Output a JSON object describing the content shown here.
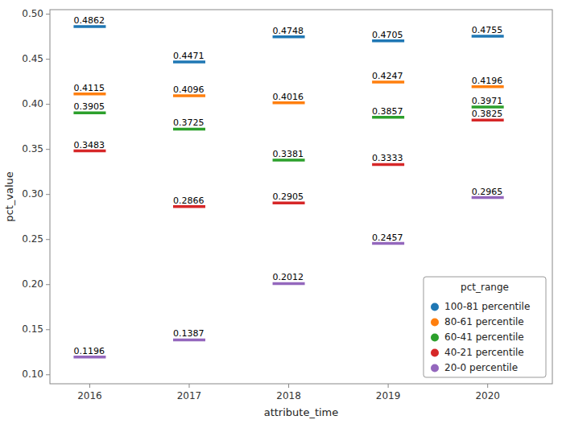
{
  "chart_data": {
    "type": "scatter",
    "marker": "hline",
    "x_label": "attribute_time",
    "y_label": "pct_value",
    "legend_title": "pct_range",
    "x": [
      2016,
      2017,
      2018,
      2019,
      2020
    ],
    "series": [
      {
        "name": "100-81 percentile",
        "color": "#1f77b4",
        "values": [
          0.4862,
          0.4471,
          0.4748,
          0.4705,
          0.4755
        ]
      },
      {
        "name": "80-61 percentile",
        "color": "#ff7f0e",
        "values": [
          0.4115,
          0.4096,
          0.4016,
          0.4247,
          0.4196
        ]
      },
      {
        "name": "60-41 percentile",
        "color": "#2ca02c",
        "values": [
          0.3905,
          0.3725,
          0.3381,
          0.3857,
          0.3971
        ]
      },
      {
        "name": "40-21 percentile",
        "color": "#d62728",
        "values": [
          0.3483,
          0.2866,
          0.2905,
          0.3333,
          0.3825
        ]
      },
      {
        "name": "20-0 percentile",
        "color": "#9467bd",
        "values": [
          0.1196,
          0.1387,
          0.2012,
          0.2457,
          0.2965
        ]
      }
    ],
    "xlim": [
      2015.6,
      2020.65
    ],
    "xticks": [
      2016,
      2017,
      2018,
      2019,
      2020
    ],
    "ylim": [
      0.09,
      0.505
    ],
    "yticks": [
      {
        "value": 0.1,
        "label": "0.10"
      },
      0.15,
      {
        "value": 0.2,
        "label": "0.20"
      },
      0.25,
      {
        "value": 0.3,
        "label": "0.30"
      },
      0.35,
      {
        "value": 0.4,
        "label": "0.40"
      },
      0.45,
      {
        "value": 0.5,
        "label": "0.50"
      }
    ],
    "grid": false,
    "legend": "lower right",
    "data_labels": true
  }
}
